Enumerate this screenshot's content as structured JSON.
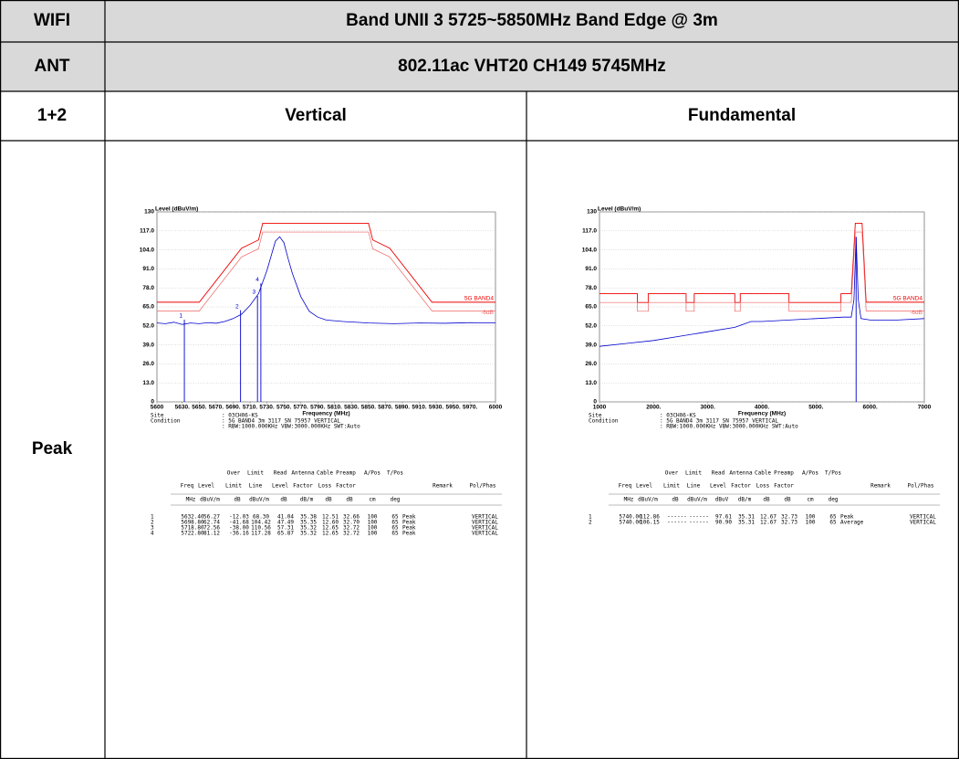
{
  "table": {
    "rows": [
      [
        "WIFI",
        "Band UNII 3 5725~5850MHz Band Edge @ 3m"
      ],
      [
        "ANT",
        "802.11ac VHT20 CH149 5745MHz"
      ],
      [
        "1+2",
        "Vertical",
        "Fundamental"
      ]
    ],
    "row_label": "Peak"
  },
  "plots": [
    {
      "type": "line",
      "y_label": "Level (dBuV/m)",
      "x_label": "Frequency (MHz)",
      "xlim": [
        5600,
        6000
      ],
      "ylim": [
        0,
        130
      ],
      "yticks": [
        0,
        {
          "value": 13,
          "label": "13.0"
        },
        {
          "value": 26,
          "label": "26.0"
        },
        {
          "value": 39,
          "label": "39.0"
        },
        {
          "value": 52,
          "label": "52.0"
        },
        {
          "value": 65,
          "label": "65.0"
        },
        {
          "value": 78,
          "label": "78.0"
        },
        {
          "value": 91,
          "label": "91.0"
        },
        {
          "value": 104,
          "label": "104.0"
        },
        {
          "value": 117,
          "label": "117.0"
        },
        130
      ],
      "xticks": [
        5600,
        {
          "value": 5630,
          "label": "5630."
        },
        {
          "value": 5650,
          "label": "5650."
        },
        {
          "value": 5670,
          "label": "5670."
        },
        {
          "value": 5690,
          "label": "5690."
        },
        {
          "value": 5710,
          "label": "5710."
        },
        {
          "value": 5730,
          "label": "5730."
        },
        {
          "value": 5750,
          "label": "5750."
        },
        {
          "value": 5770,
          "label": "5770."
        },
        {
          "value": 5790,
          "label": "5790."
        },
        {
          "value": 5810,
          "label": "5810."
        },
        {
          "value": 5830,
          "label": "5830."
        },
        {
          "value": 5850,
          "label": "5850."
        },
        {
          "value": 5870,
          "label": "5870."
        },
        {
          "value": 5890,
          "label": "5890."
        },
        {
          "value": 5910,
          "label": "5910."
        },
        {
          "value": 5930,
          "label": "5930."
        },
        {
          "value": 5950,
          "label": "5950."
        },
        {
          "value": 5970,
          "label": "5970."
        },
        6000
      ],
      "trace_x": [
        5600,
        5610,
        5620,
        5630,
        5640,
        5650,
        5660,
        5670,
        5680,
        5690,
        5700,
        5710,
        5720,
        5730,
        5735,
        5740,
        5745,
        5750,
        5755,
        5760,
        5770,
        5780,
        5790,
        5800,
        5820,
        5850,
        5880,
        5910,
        5940,
        5970,
        6000
      ],
      "trace_y": [
        54,
        53.5,
        54.5,
        53,
        54,
        53.5,
        54.2,
        53.8,
        55,
        57,
        60,
        66,
        74,
        90,
        100,
        110,
        113,
        109,
        98,
        88,
        72,
        62,
        58,
        56,
        55,
        54,
        53.5,
        54,
        53.8,
        54.2,
        54
      ],
      "limit_x": [
        5600,
        5650,
        5700,
        5720,
        5725,
        5850,
        5855,
        5875,
        5925,
        6000
      ],
      "limit_upper": [
        68.2,
        68.2,
        105.2,
        110.8,
        122.2,
        122.2,
        110.8,
        105.2,
        68.2,
        68.2
      ],
      "limit_lower": [
        62.2,
        62.2,
        99.2,
        104.8,
        116.2,
        116.2,
        104.8,
        99.2,
        62.2,
        62.2
      ],
      "limit_label": "5G BAND4",
      "lower_label": "-6dB",
      "markers": {
        "labels": [
          "1",
          "2",
          "3",
          "4"
        ],
        "x": [
          5632.4,
          5698.8,
          5718.8,
          5722.8
        ],
        "y": [
          56.27,
          62.74,
          72.56,
          81.12
        ]
      },
      "info": [
        [
          "Site",
          ": 03CH06-KS"
        ],
        [
          "Condition",
          ": 5G BAND4 3m 3117 SN 75957 VERTICAL"
        ],
        [
          ": RBW:1000.000KHz VBW:3000.000KHz SWT:Auto"
        ]
      ],
      "header": [
        [
          "Freq"
        ],
        [
          "Level"
        ],
        [
          "Over",
          "Limit"
        ],
        [
          "Limit",
          "Line"
        ],
        [
          "Read",
          "Level"
        ],
        [
          "Antenna",
          "Factor"
        ],
        [
          "Cable",
          "Loss"
        ],
        [
          "Preamp",
          "Factor"
        ],
        [
          "A/Pos"
        ],
        [
          "T/Pos"
        ],
        [
          "Remark"
        ],
        [
          "Pol/Phas"
        ]
      ],
      "units": [
        "MHz",
        "dBuV/m",
        "dB",
        "dBuV/m",
        "dB",
        "dB/m",
        "dB",
        "dB",
        "cm",
        "deg"
      ],
      "rows": [
        [
          "1",
          "5632.40",
          "56.27",
          "-12.03",
          "68.30",
          "41.04",
          "35.38",
          "12.51",
          "32.66",
          "100",
          "65",
          "Peak",
          "VERTICAL"
        ],
        [
          "2",
          "5698.80",
          "62.74",
          "-41.68",
          "104.42",
          "47.49",
          "35.35",
          "12.60",
          "32.70",
          "100",
          "65",
          "Peak",
          "VERTICAL"
        ],
        [
          "3",
          "5718.80",
          "72.56",
          "-38.00",
          "110.56",
          "57.31",
          "35.32",
          "12.65",
          "32.72",
          "100",
          "65",
          "Peak",
          "VERTICAL"
        ],
        [
          "4",
          "5722.80",
          "81.12",
          "-36.16",
          "117.28",
          "65.87",
          "35.32",
          "12.65",
          "32.72",
          "100",
          "65",
          "Peak",
          "VERTICAL"
        ]
      ]
    },
    {
      "type": "line",
      "y_label": "Level (dBuV/m)",
      "x_label": "Frequency (MHz)",
      "xlim": [
        1000,
        7000
      ],
      "ylim": [
        0,
        130
      ],
      "yticks": [
        0,
        {
          "value": 13,
          "label": "13.0"
        },
        {
          "value": 26,
          "label": "26.0"
        },
        {
          "value": 39,
          "label": "39.0"
        },
        {
          "value": 52,
          "label": "52.0"
        },
        {
          "value": 65,
          "label": "65.0"
        },
        {
          "value": 78,
          "label": "78.0"
        },
        {
          "value": 91,
          "label": "91.0"
        },
        {
          "value": 104,
          "label": "104.0"
        },
        {
          "value": 117,
          "label": "117.0"
        },
        130
      ],
      "xticks": [
        1000,
        {
          "value": 2000,
          "label": "2000."
        },
        {
          "value": 3000,
          "label": "3000."
        },
        {
          "value": 4000,
          "label": "4000."
        },
        {
          "value": 5000,
          "label": "5000."
        },
        {
          "value": 6000,
          "label": "6000."
        },
        7000
      ],
      "trace_x": [
        1000,
        1500,
        2000,
        2500,
        3000,
        3500,
        3800,
        4000,
        4500,
        5000,
        5500,
        5650,
        5700,
        5740,
        5780,
        5830,
        6000,
        6500,
        7000
      ],
      "trace_y": [
        38,
        40,
        42,
        45,
        48,
        51,
        55,
        55,
        56,
        57,
        58,
        58,
        70,
        112.86,
        70,
        57,
        56,
        56,
        57
      ],
      "limit_x": [
        1000,
        1700,
        1700,
        1900,
        1900,
        2600,
        2600,
        2750,
        2750,
        3500,
        3500,
        3600,
        3600,
        4500,
        4500,
        5460,
        5460,
        5650,
        5700,
        5725,
        5850,
        5875,
        5925,
        7000
      ],
      "limit_upper": [
        74,
        74,
        68,
        68,
        74,
        74,
        68,
        68,
        74,
        74,
        68,
        68,
        74,
        74,
        68,
        68,
        74,
        74,
        105.2,
        122.2,
        122.2,
        105.2,
        68.2,
        68.2
      ],
      "limit_lower": [
        68,
        68,
        62,
        62,
        68,
        68,
        62,
        62,
        68,
        68,
        62,
        62,
        68,
        68,
        62,
        62,
        68,
        68,
        99.2,
        116.2,
        116.2,
        99.2,
        62.2,
        62.2
      ],
      "limit_label": "5G BAND4",
      "lower_label": "-6dB",
      "markers": {
        "x": [
          5740
        ],
        "y": [
          112.86
        ]
      },
      "info": [
        [
          "Site",
          ": 03CH06-KS"
        ],
        [
          "Condition",
          ": 5G BAND4 3m 3117 SN 75957 VERTICAL"
        ],
        [
          ": RBW:1000.000KHz VBW:3000.000KHz SWT:Auto"
        ]
      ],
      "header": [
        [
          "Freq"
        ],
        [
          "Level"
        ],
        [
          "Over",
          "Limit"
        ],
        [
          "Limit",
          "Line"
        ],
        [
          "Read",
          "Level"
        ],
        [
          "Antenna",
          "Factor"
        ],
        [
          "Cable",
          "Loss"
        ],
        [
          "Preamp",
          "Factor"
        ],
        [
          "A/Pos"
        ],
        [
          "T/Pos"
        ],
        [
          "Remark"
        ],
        [
          "Pol/Phas"
        ]
      ],
      "units": [
        "MHz",
        "dBuV/m",
        "dB",
        "dBuV/m",
        "dBuV",
        "dB/m",
        "dB",
        "dB",
        "cm",
        "deg"
      ],
      "rows": [
        [
          "1",
          "5740.00",
          "112.86",
          "------",
          "------",
          "97.61",
          "35.31",
          "12.67",
          "32.73",
          "100",
          "65",
          "Peak",
          "VERTICAL"
        ],
        [
          "2",
          "5740.00",
          "106.15",
          "------",
          "------",
          "90.90",
          "35.31",
          "12.67",
          "32.73",
          "100",
          "65",
          "Average",
          "VERTICAL"
        ]
      ]
    }
  ]
}
